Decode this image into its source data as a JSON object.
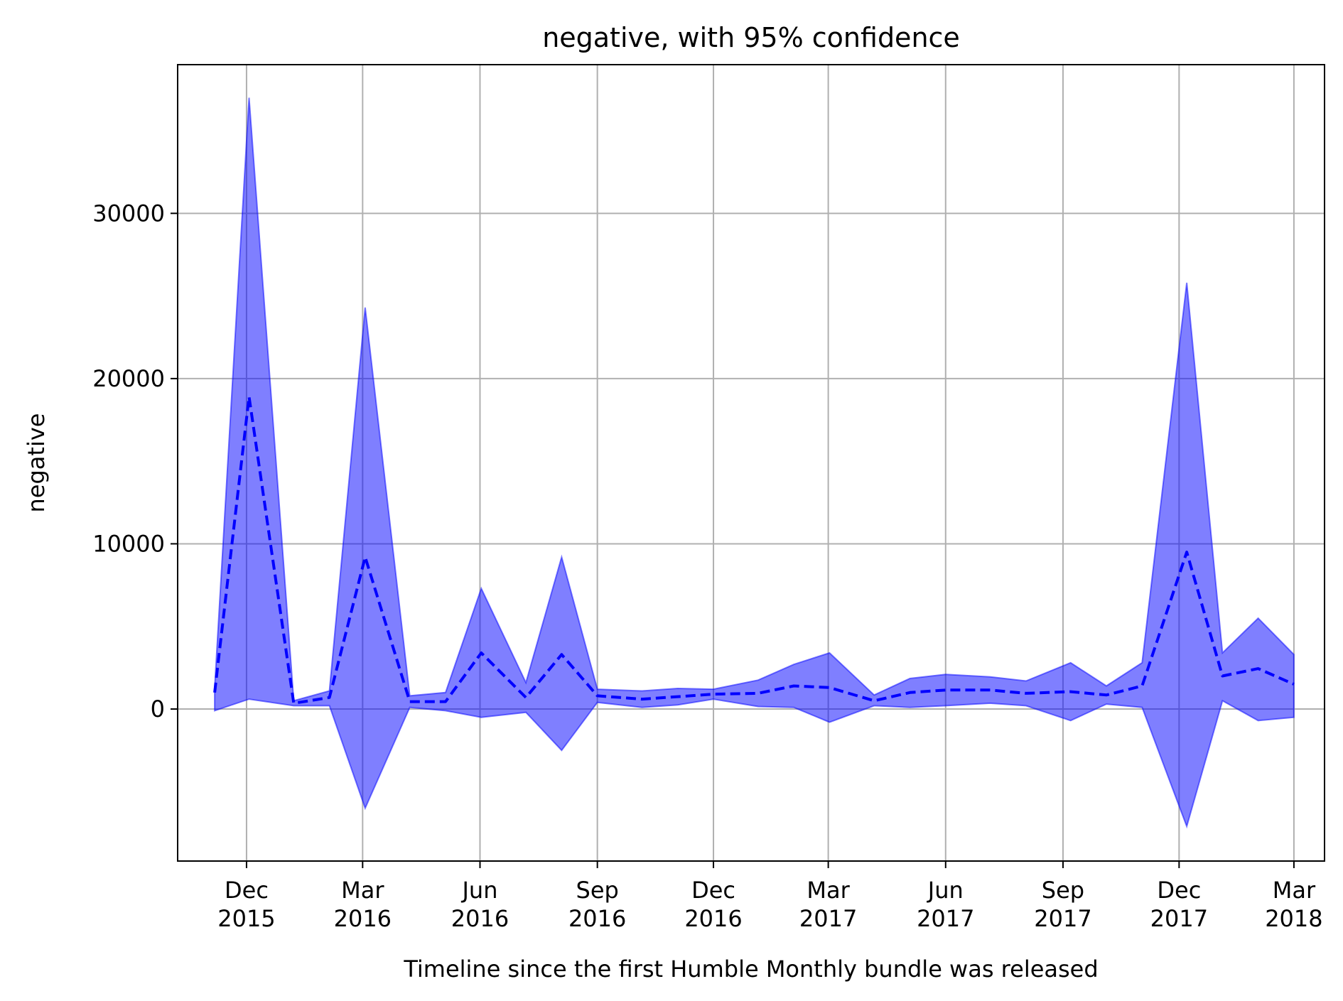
{
  "chart_data": {
    "type": "area",
    "title": "negative, with 95% confidence",
    "xlabel": "Timeline since the first Humble Monthly bundle was released",
    "ylabel": "negative",
    "grid": true,
    "x_ticks": [
      {
        "date": "2015-12-01",
        "label": [
          "Dec",
          "2015"
        ]
      },
      {
        "date": "2016-03-01",
        "label": [
          "Mar",
          "2016"
        ]
      },
      {
        "date": "2016-06-01",
        "label": [
          "Jun",
          "2016"
        ]
      },
      {
        "date": "2016-09-01",
        "label": [
          "Sep",
          "2016"
        ]
      },
      {
        "date": "2016-12-01",
        "label": [
          "Dec",
          "2016"
        ]
      },
      {
        "date": "2017-03-01",
        "label": [
          "Mar",
          "2017"
        ]
      },
      {
        "date": "2017-06-01",
        "label": [
          "Jun",
          "2017"
        ]
      },
      {
        "date": "2017-09-01",
        "label": [
          "Sep",
          "2017"
        ]
      },
      {
        "date": "2017-12-01",
        "label": [
          "Dec",
          "2017"
        ]
      },
      {
        "date": "2018-03-01",
        "label": [
          "Mar",
          "2018"
        ]
      }
    ],
    "y_ticks": [
      0,
      10000,
      20000,
      30000
    ],
    "xlim": [
      "2015-10-08",
      "2018-03-25"
    ],
    "ylim": [
      -9200,
      39000
    ],
    "colors": {
      "band": "#0000ff",
      "line": "#0000ff",
      "grid": "#b0b0b0"
    },
    "series": [
      {
        "role": "mean",
        "x": [
          "2015-11-06",
          "2015-12-03",
          "2016-01-07",
          "2016-02-04",
          "2016-03-03",
          "2016-04-07",
          "2016-05-05",
          "2016-06-02",
          "2016-07-07",
          "2016-08-04",
          "2016-09-01",
          "2016-10-06",
          "2016-11-03",
          "2016-12-01",
          "2017-01-05",
          "2017-02-02",
          "2017-03-02",
          "2017-04-06",
          "2017-05-04",
          "2017-06-01",
          "2017-07-06",
          "2017-08-03",
          "2017-09-07",
          "2017-10-05",
          "2017-11-02",
          "2017-12-07",
          "2018-01-04",
          "2018-02-01",
          "2018-03-01"
        ],
        "values": [
          1000,
          18900,
          350,
          700,
          9200,
          450,
          450,
          3400,
          700,
          3300,
          800,
          600,
          750,
          900,
          950,
          1400,
          1300,
          500,
          1000,
          1150,
          1150,
          950,
          1050,
          850,
          1400,
          9500,
          2000,
          2450,
          1500
        ]
      },
      {
        "role": "upper-95",
        "x": [
          "2015-11-06",
          "2015-12-03",
          "2016-01-07",
          "2016-02-04",
          "2016-03-03",
          "2016-04-07",
          "2016-05-05",
          "2016-06-02",
          "2016-07-07",
          "2016-08-04",
          "2016-09-01",
          "2016-10-06",
          "2016-11-03",
          "2016-12-01",
          "2017-01-05",
          "2017-02-02",
          "2017-03-02",
          "2017-04-06",
          "2017-05-04",
          "2017-06-01",
          "2017-07-06",
          "2017-08-03",
          "2017-09-07",
          "2017-10-05",
          "2017-11-02",
          "2017-12-07",
          "2018-01-04",
          "2018-02-01",
          "2018-03-01"
        ],
        "values": [
          1300,
          37000,
          500,
          1100,
          24300,
          800,
          1000,
          7300,
          1600,
          9200,
          1200,
          1100,
          1250,
          1200,
          1750,
          2700,
          3400,
          850,
          1850,
          2100,
          1950,
          1700,
          2800,
          1400,
          2800,
          25800,
          3400,
          5500,
          3300
        ]
      },
      {
        "role": "lower-95",
        "x": [
          "2015-11-06",
          "2015-12-03",
          "2016-01-07",
          "2016-02-04",
          "2016-03-03",
          "2016-04-07",
          "2016-05-05",
          "2016-06-02",
          "2016-07-07",
          "2016-08-04",
          "2016-09-01",
          "2016-10-06",
          "2016-11-03",
          "2016-12-01",
          "2017-01-05",
          "2017-02-02",
          "2017-03-02",
          "2017-04-06",
          "2017-05-04",
          "2017-06-01",
          "2017-07-06",
          "2017-08-03",
          "2017-09-07",
          "2017-10-05",
          "2017-11-02",
          "2017-12-07",
          "2018-01-04",
          "2018-02-01",
          "2018-03-01"
        ],
        "values": [
          -100,
          600,
          200,
          200,
          -6000,
          100,
          -100,
          -500,
          -200,
          -2500,
          400,
          100,
          250,
          600,
          150,
          100,
          -800,
          200,
          100,
          200,
          350,
          200,
          -700,
          300,
          100,
          -7100,
          500,
          -700,
          -500
        ]
      }
    ]
  }
}
